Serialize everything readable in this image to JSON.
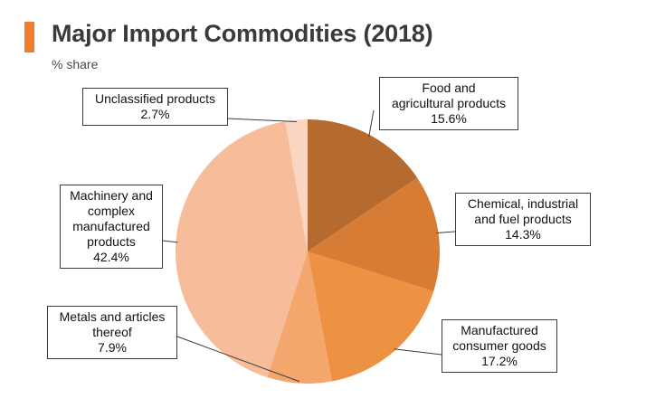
{
  "header": {
    "title": "Major Import Commodities (2018)",
    "subtitle": "% share",
    "accent_color": "#ef7d2d"
  },
  "chart_data": {
    "type": "pie",
    "title": "Major Import Commodities (2018)",
    "subtitle": "% share",
    "start_angle_deg": 0,
    "direction": "clockwise",
    "slices": [
      {
        "label_lines": [
          "Food and",
          "agricultural products"
        ],
        "label": "Food and agricultural products",
        "value": 15.6,
        "value_text": "15.6%",
        "color": "#b56a2f"
      },
      {
        "label_lines": [
          "Chemical, industrial",
          "and fuel products"
        ],
        "label": "Chemical, industrial and fuel products",
        "value": 14.3,
        "value_text": "14.3%",
        "color": "#d67c34"
      },
      {
        "label_lines": [
          "Manufactured",
          "consumer goods"
        ],
        "label": "Manufactured consumer goods",
        "value": 17.2,
        "value_text": "17.2%",
        "color": "#ed9142"
      },
      {
        "label_lines": [
          "Metals and articles",
          "thereof"
        ],
        "label": "Metals and articles thereof",
        "value": 7.9,
        "value_text": "7.9%",
        "color": "#f3a76c"
      },
      {
        "label_lines": [
          "Machinery and",
          "complex",
          "manufactured",
          "products"
        ],
        "label": "Machinery and complex manufactured products",
        "value": 42.4,
        "value_text": "42.4%",
        "color": "#f7bd9b"
      },
      {
        "label_lines": [
          "Unclassified products"
        ],
        "label": "Unclassified products",
        "value": 2.7,
        "value_text": "2.7%",
        "color": "#fad5c2"
      }
    ]
  }
}
